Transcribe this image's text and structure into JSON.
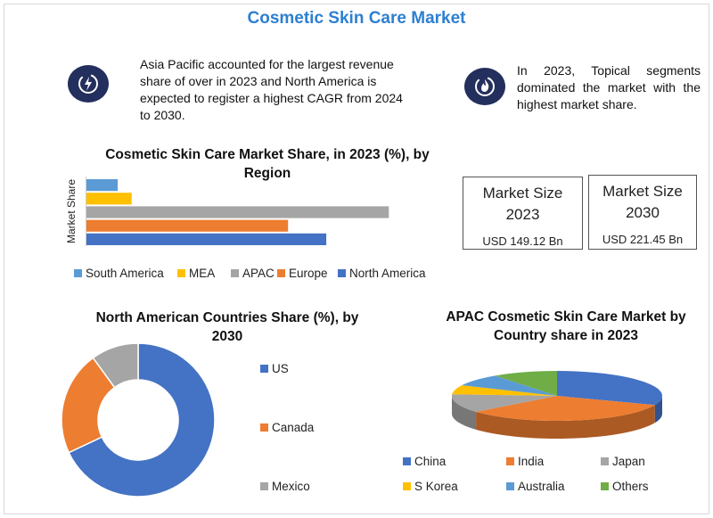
{
  "title": "Cosmetic Skin Care Market",
  "info_left": {
    "icon": "lightning-bolt-icon",
    "text": "Asia Pacific accounted for the largest revenue share of over in 2023 and North America is expected to register a highest CAGR from 2024 to 2030."
  },
  "info_right": {
    "icon": "flame-icon",
    "text": "In 2023, Topical segments dominated the market with the highest market share."
  },
  "stat_boxes": [
    {
      "label": "Market Size 2023",
      "value": "USD 149.12 Bn"
    },
    {
      "label": "Market Size 2030",
      "value": "USD 221.45 Bn"
    }
  ],
  "colors": {
    "title": "#2d7fd1",
    "icon_bg": "#232f5c",
    "South America": "#5b9bd5",
    "MEA": "#ffc000",
    "APAC": "#a5a5a5",
    "Europe": "#ed7d31",
    "North America": "#4472c4",
    "US": "#4472c4",
    "Canada": "#ed7d31",
    "Mexico": "#a5a5a5",
    "China": "#4472c4",
    "India": "#ed7d31",
    "Japan": "#a5a5a5",
    "S Korea": "#ffc000",
    "Australia": "#5b9bd5",
    "Others": "#70ad47"
  },
  "chart_data": [
    {
      "type": "bar",
      "orientation": "horizontal",
      "title": "Cosmetic Skin Care Market Share, in 2023 (%), by Region",
      "ylabel": "Market Share",
      "categories": [
        "South America",
        "MEA",
        "APAC",
        "Europe",
        "North America"
      ],
      "values": [
        4.5,
        6.5,
        43.5,
        29.0,
        34.5
      ],
      "xlim": [
        0,
        50
      ],
      "legend_position": "bottom",
      "grid": false
    },
    {
      "type": "pie",
      "variant": "donut",
      "title": "North American Countries Share (%), by 2030",
      "categories": [
        "US",
        "Canada",
        "Mexico"
      ],
      "values": [
        68,
        22,
        10
      ],
      "legend_position": "right"
    },
    {
      "type": "pie",
      "variant": "3d",
      "title": "APAC  Cosmetic Skin Care Market by Country share in 2023",
      "categories": [
        "China",
        "India",
        "Japan",
        "S Korea",
        "Australia",
        "Others"
      ],
      "values": [
        31,
        33,
        12,
        6,
        8,
        10
      ],
      "legend_position": "bottom"
    }
  ]
}
